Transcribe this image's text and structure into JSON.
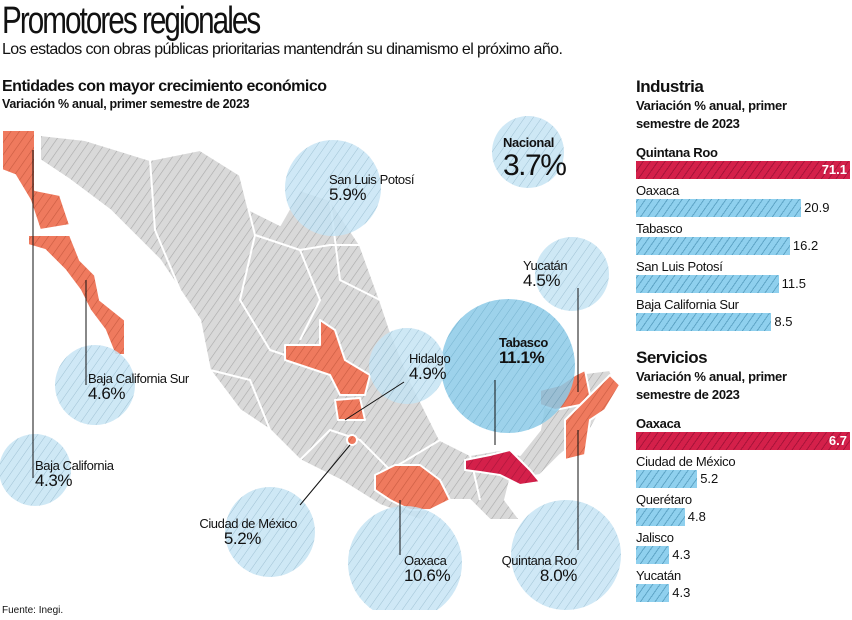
{
  "header": {
    "title": "Promotores regionales",
    "subtitle": "Los estados con obras públicas prioritarias mantendrán su dinamismo el próximo año."
  },
  "map": {
    "title": "Entidades con mayor crecimiento económico",
    "subtitle": "Variación % anual, primer semestre de 2023",
    "national": {
      "label": "Nacional",
      "value": "3.7%"
    },
    "states": [
      {
        "name": "Baja California",
        "value": "4.3%"
      },
      {
        "name": "Baja California Sur",
        "value": "4.6%"
      },
      {
        "name": "San Luis Potosí",
        "value": "5.9%"
      },
      {
        "name": "Hidalgo",
        "value": "4.9%"
      },
      {
        "name": "Tabasco",
        "value": "11.1%"
      },
      {
        "name": "Yucatán",
        "value": "4.5%"
      },
      {
        "name": "Ciudad de México",
        "value": "5.2%"
      },
      {
        "name": "Oaxaca",
        "value": "10.6%"
      },
      {
        "name": "Quintana Roo",
        "value": "8.0%"
      }
    ]
  },
  "colors": {
    "highlight": "#d4204a",
    "bar": "#8fd0ee",
    "bubble": "#c6e4f4",
    "bubble_strong": "#8ccbe8",
    "state": "#ef7a5e",
    "land": "#d9d9d9"
  },
  "chart_data": [
    {
      "type": "bar",
      "orientation": "horizontal",
      "title": "Industria",
      "subtitle": "Variación % anual, primer semestre de 2023",
      "categories": [
        "Quintana Roo",
        "Oaxaca",
        "Tabasco",
        "San Luis Potosí",
        "Baja California Sur"
      ],
      "values": [
        71.1,
        20.9,
        16.2,
        11.5,
        8.5
      ],
      "labels": [
        "71.1",
        "20.9",
        "16.2",
        "11.5",
        "8.5"
      ],
      "highlight_index": 0
    },
    {
      "type": "bar",
      "orientation": "horizontal",
      "title": "Servicios",
      "subtitle": "Variación % anual, primer semestre de 2023",
      "categories": [
        "Oaxaca",
        "Ciudad de México",
        "Querétaro",
        "Jalisco",
        "Yucatán"
      ],
      "values": [
        6.7,
        5.2,
        4.8,
        4.3,
        4.3
      ],
      "labels": [
        "6.7",
        "5.2",
        "4.8",
        "4.3",
        "4.3"
      ],
      "highlight_index": 0
    }
  ],
  "footer": {
    "source": "Fuente: Inegi."
  }
}
